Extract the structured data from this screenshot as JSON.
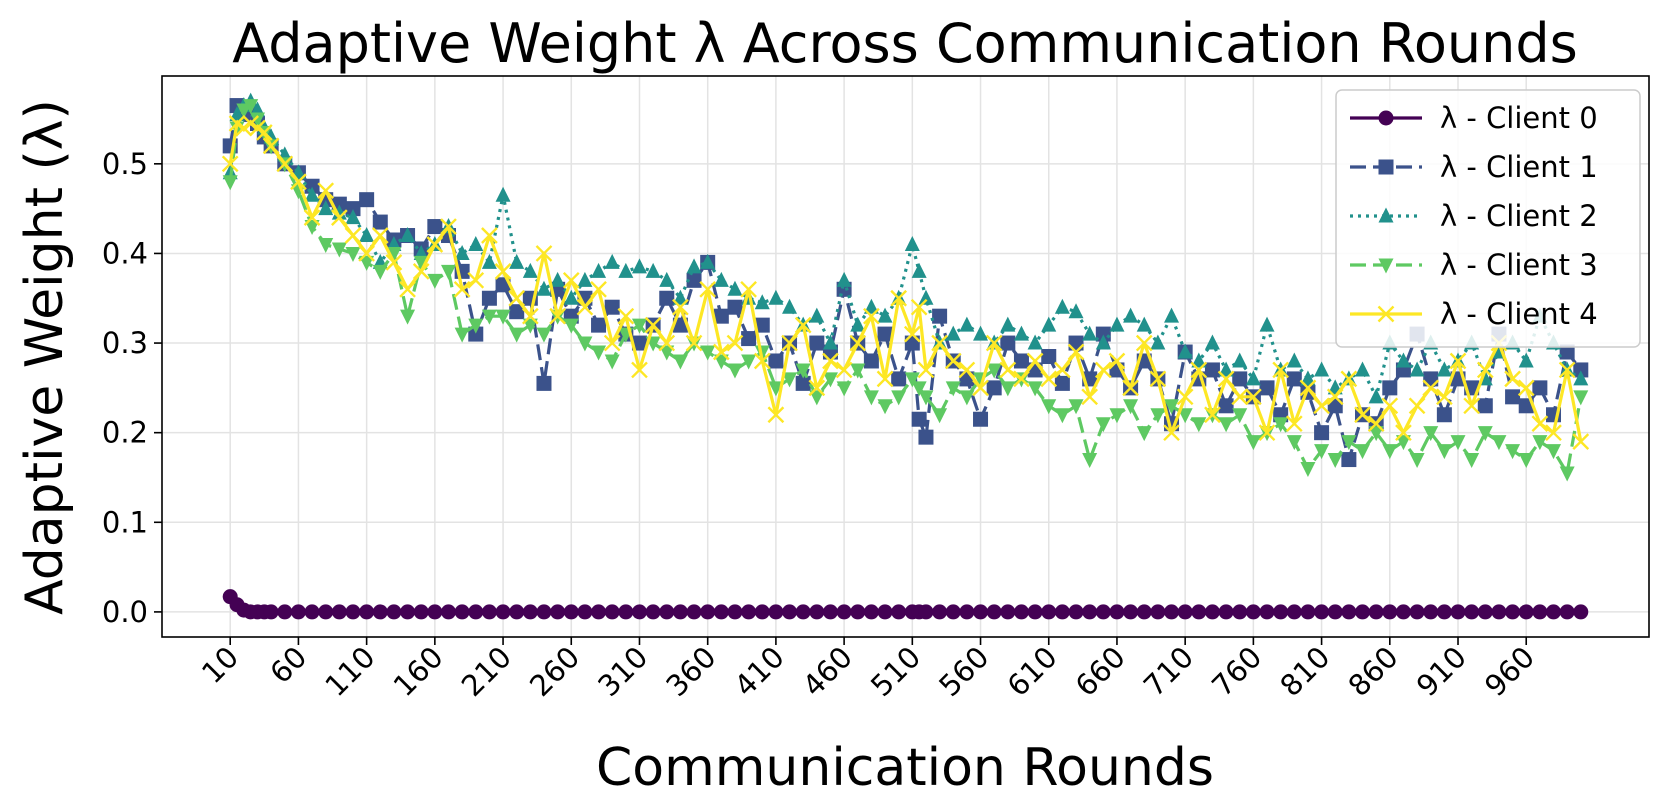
{
  "chart_data": {
    "type": "line",
    "title": "Adaptive Weight λ Across Communication Rounds",
    "xlabel": "Communication Rounds",
    "ylabel": "Adaptive Weight (λ)",
    "xlim": [
      -40,
      1050
    ],
    "ylim": [
      -0.028,
      0.598
    ],
    "xticks": [
      10,
      60,
      110,
      160,
      210,
      260,
      310,
      360,
      410,
      460,
      510,
      560,
      610,
      660,
      710,
      760,
      810,
      860,
      910,
      960
    ],
    "yticks": [
      0.0,
      0.1,
      0.2,
      0.3,
      0.4,
      0.5
    ],
    "ytick_labels": [
      "0.0",
      "0.1",
      "0.2",
      "0.3",
      "0.4",
      "0.5"
    ],
    "grid": true,
    "legend_position": "top-right",
    "x": [
      10,
      15,
      20,
      25,
      30,
      35,
      40,
      50,
      60,
      70,
      80,
      90,
      100,
      110,
      120,
      130,
      140,
      150,
      160,
      170,
      180,
      190,
      200,
      210,
      220,
      230,
      240,
      250,
      260,
      270,
      280,
      290,
      300,
      310,
      320,
      330,
      340,
      350,
      360,
      370,
      380,
      390,
      400,
      410,
      420,
      430,
      440,
      450,
      460,
      470,
      480,
      490,
      500,
      510,
      515,
      520,
      530,
      540,
      550,
      560,
      570,
      580,
      590,
      600,
      610,
      620,
      630,
      640,
      650,
      660,
      670,
      680,
      690,
      700,
      710,
      720,
      730,
      740,
      750,
      760,
      770,
      780,
      790,
      800,
      810,
      820,
      830,
      840,
      850,
      860,
      870,
      880,
      890,
      900,
      910,
      920,
      930,
      940,
      950,
      960,
      970,
      980,
      990,
      1000
    ],
    "series": [
      {
        "name": "λ - Client 0",
        "color": "#440154",
        "marker": "circle",
        "dash": "solid",
        "values": [
          0.017,
          0.008,
          0.002,
          0.0,
          0.0,
          0.0,
          0.0,
          0.0,
          0.0,
          0.0,
          0.0,
          0.0,
          0.0,
          0.0,
          0.0,
          0.0,
          0.0,
          0.0,
          0.0,
          0.0,
          0.0,
          0.0,
          0.0,
          0.0,
          0.0,
          0.0,
          0.0,
          0.0,
          0.0,
          0.0,
          0.0,
          0.0,
          0.0,
          0.0,
          0.0,
          0.0,
          0.0,
          0.0,
          0.0,
          0.0,
          0.0,
          0.0,
          0.0,
          0.0,
          0.0,
          0.0,
          0.0,
          0.0,
          0.0,
          0.0,
          0.0,
          0.0,
          0.0,
          0.0,
          0.0,
          0.0,
          0.0,
          0.0,
          0.0,
          0.0,
          0.0,
          0.0,
          0.0,
          0.0,
          0.0,
          0.0,
          0.0,
          0.0,
          0.0,
          0.0,
          0.0,
          0.0,
          0.0,
          0.0,
          0.0,
          0.0,
          0.0,
          0.0,
          0.0,
          0.0,
          0.0,
          0.0,
          0.0,
          0.0,
          0.0,
          0.0,
          0.0,
          0.0,
          0.0,
          0.0,
          0.0,
          0.0,
          0.0,
          0.0,
          0.0,
          0.0,
          0.0,
          0.0,
          0.0,
          0.0,
          0.0,
          0.0,
          0.0,
          0.0
        ]
      },
      {
        "name": "λ - Client 1",
        "color": "#3b528b",
        "marker": "square",
        "dash": "dashed",
        "values": [
          0.52,
          0.565,
          0.56,
          0.555,
          0.545,
          0.53,
          0.52,
          0.5,
          0.49,
          0.475,
          0.46,
          0.455,
          0.45,
          0.46,
          0.435,
          0.415,
          0.42,
          0.405,
          0.43,
          0.42,
          0.38,
          0.31,
          0.35,
          0.365,
          0.335,
          0.35,
          0.255,
          0.36,
          0.33,
          0.35,
          0.32,
          0.34,
          0.31,
          0.3,
          0.32,
          0.35,
          0.32,
          0.37,
          0.39,
          0.33,
          0.34,
          0.305,
          0.32,
          0.28,
          0.3,
          0.255,
          0.3,
          0.29,
          0.36,
          0.3,
          0.28,
          0.31,
          0.26,
          0.3,
          0.215,
          0.195,
          0.33,
          0.28,
          0.26,
          0.215,
          0.25,
          0.3,
          0.28,
          0.27,
          0.285,
          0.255,
          0.3,
          0.26,
          0.31,
          0.27,
          0.25,
          0.28,
          0.26,
          0.21,
          0.29,
          0.26,
          0.27,
          0.23,
          0.26,
          0.24,
          0.25,
          0.22,
          0.26,
          0.245,
          0.2,
          0.23,
          0.17,
          0.22,
          0.21,
          0.25,
          0.27,
          0.31,
          0.26,
          0.22,
          0.26,
          0.25,
          0.23,
          0.31,
          0.24,
          0.23,
          0.25,
          0.22,
          0.29,
          0.27
        ]
      },
      {
        "name": "λ - Client 2",
        "color": "#21918c",
        "marker": "triangle-up",
        "dash": "dotted",
        "values": [
          0.49,
          0.555,
          0.565,
          0.57,
          0.56,
          0.54,
          0.53,
          0.51,
          0.49,
          0.465,
          0.45,
          0.445,
          0.44,
          0.42,
          0.39,
          0.41,
          0.42,
          0.4,
          0.41,
          0.43,
          0.4,
          0.41,
          0.39,
          0.465,
          0.39,
          0.38,
          0.36,
          0.37,
          0.35,
          0.37,
          0.38,
          0.39,
          0.38,
          0.385,
          0.38,
          0.37,
          0.35,
          0.385,
          0.39,
          0.37,
          0.36,
          0.35,
          0.345,
          0.35,
          0.34,
          0.32,
          0.33,
          0.3,
          0.37,
          0.32,
          0.34,
          0.33,
          0.35,
          0.41,
          0.38,
          0.35,
          0.3,
          0.31,
          0.32,
          0.31,
          0.3,
          0.32,
          0.31,
          0.3,
          0.32,
          0.34,
          0.335,
          0.31,
          0.3,
          0.32,
          0.33,
          0.32,
          0.3,
          0.33,
          0.29,
          0.28,
          0.3,
          0.27,
          0.28,
          0.26,
          0.32,
          0.27,
          0.28,
          0.26,
          0.27,
          0.25,
          0.26,
          0.27,
          0.24,
          0.3,
          0.28,
          0.27,
          0.3,
          0.27,
          0.28,
          0.3,
          0.26,
          0.29,
          0.3,
          0.28,
          0.33,
          0.3,
          0.27,
          0.26
        ]
      },
      {
        "name": "λ - Client 3",
        "color": "#5ec962",
        "marker": "triangle-down",
        "dash": "dashed",
        "values": [
          0.48,
          0.54,
          0.56,
          0.565,
          0.55,
          0.535,
          0.52,
          0.5,
          0.47,
          0.43,
          0.41,
          0.405,
          0.4,
          0.39,
          0.38,
          0.4,
          0.33,
          0.39,
          0.37,
          0.38,
          0.31,
          0.32,
          0.33,
          0.33,
          0.31,
          0.32,
          0.31,
          0.33,
          0.32,
          0.3,
          0.29,
          0.28,
          0.31,
          0.32,
          0.3,
          0.29,
          0.28,
          0.3,
          0.29,
          0.28,
          0.27,
          0.28,
          0.29,
          0.25,
          0.26,
          0.27,
          0.24,
          0.26,
          0.25,
          0.27,
          0.24,
          0.23,
          0.24,
          0.26,
          0.25,
          0.24,
          0.22,
          0.25,
          0.24,
          0.26,
          0.27,
          0.25,
          0.26,
          0.25,
          0.23,
          0.22,
          0.23,
          0.17,
          0.21,
          0.22,
          0.23,
          0.2,
          0.22,
          0.23,
          0.22,
          0.21,
          0.22,
          0.21,
          0.22,
          0.19,
          0.2,
          0.21,
          0.19,
          0.16,
          0.18,
          0.17,
          0.19,
          0.18,
          0.2,
          0.18,
          0.19,
          0.17,
          0.2,
          0.18,
          0.19,
          0.17,
          0.2,
          0.19,
          0.18,
          0.17,
          0.19,
          0.18,
          0.155,
          0.24
        ]
      },
      {
        "name": "λ - Client 4",
        "color": "#fde725",
        "marker": "x",
        "dash": "solid",
        "values": [
          0.5,
          0.545,
          0.54,
          0.545,
          0.54,
          0.535,
          0.52,
          0.5,
          0.48,
          0.44,
          0.47,
          0.44,
          0.42,
          0.4,
          0.42,
          0.39,
          0.36,
          0.38,
          0.41,
          0.43,
          0.36,
          0.37,
          0.42,
          0.38,
          0.35,
          0.33,
          0.4,
          0.33,
          0.37,
          0.34,
          0.36,
          0.3,
          0.33,
          0.27,
          0.32,
          0.3,
          0.34,
          0.3,
          0.36,
          0.29,
          0.3,
          0.36,
          0.28,
          0.22,
          0.3,
          0.32,
          0.25,
          0.28,
          0.27,
          0.3,
          0.33,
          0.26,
          0.35,
          0.31,
          0.34,
          0.27,
          0.3,
          0.28,
          0.27,
          0.25,
          0.3,
          0.27,
          0.26,
          0.28,
          0.26,
          0.27,
          0.29,
          0.24,
          0.27,
          0.28,
          0.25,
          0.3,
          0.26,
          0.2,
          0.24,
          0.27,
          0.22,
          0.26,
          0.24,
          0.24,
          0.2,
          0.27,
          0.21,
          0.25,
          0.23,
          0.24,
          0.26,
          0.22,
          0.21,
          0.23,
          0.2,
          0.23,
          0.25,
          0.24,
          0.28,
          0.23,
          0.27,
          0.3,
          0.26,
          0.25,
          0.21,
          0.2,
          0.27,
          0.19
        ]
      }
    ]
  }
}
